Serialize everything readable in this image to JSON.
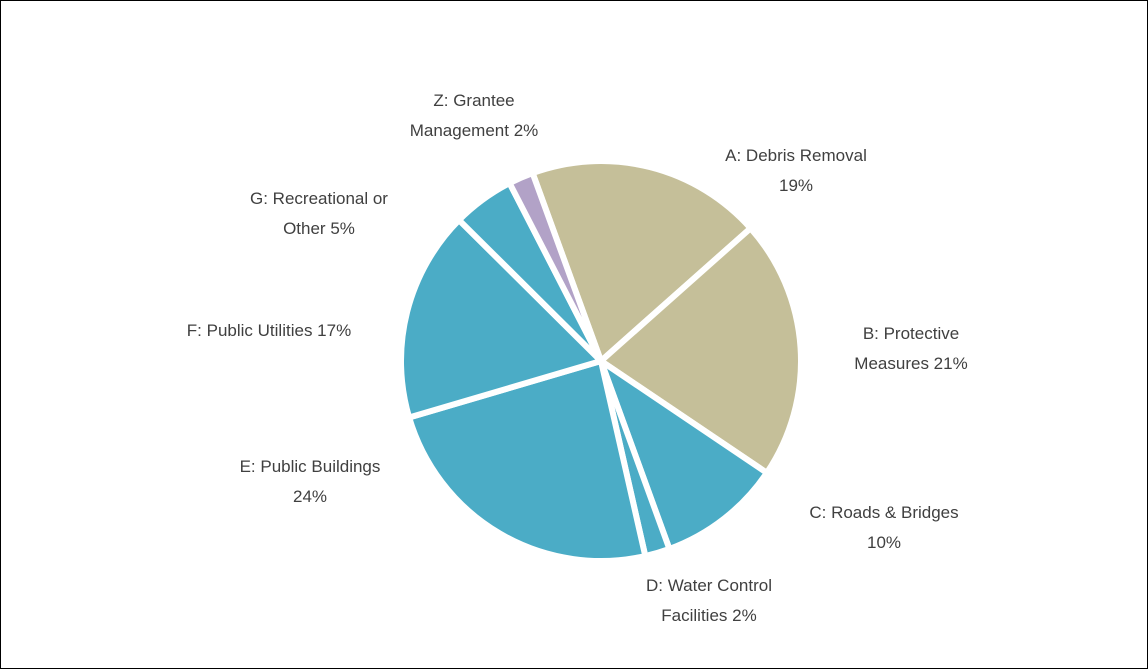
{
  "chart_data": {
    "type": "pie",
    "categories": [
      "A: Debris Removal",
      "B: Protective Measures",
      "C: Roads & Bridges",
      "D: Water Control Facilities",
      "E: Public Buildings",
      "F: Public Utilities",
      "G: Recreational or Other",
      "Z: Grantee Management"
    ],
    "values": [
      19,
      21,
      10,
      2,
      24,
      17,
      5,
      2
    ],
    "value_labels": [
      "19%",
      "21%",
      "10%",
      "2%",
      "24%",
      "17%",
      "5%",
      "2%"
    ],
    "colors": [
      "#c5bf99",
      "#c5bf99",
      "#4bacc6",
      "#4bacc6",
      "#4bacc6",
      "#4bacc6",
      "#4bacc6",
      "#b2a2c7"
    ]
  }
}
